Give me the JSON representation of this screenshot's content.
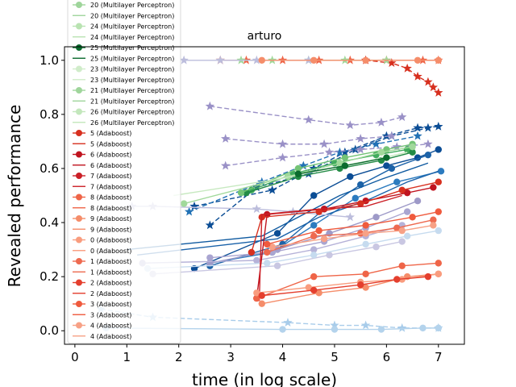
{
  "chart_data": {
    "type": "line",
    "title": "arturo",
    "xlabel": "time (in log scale)",
    "ylabel": "Revealed performance",
    "xlim": [
      -0.2,
      7.5
    ],
    "ylim": [
      -0.05,
      1.05
    ],
    "xticks": [
      0,
      1,
      2,
      3,
      4,
      5,
      6,
      7
    ],
    "yticks": [
      0.0,
      0.2,
      0.4,
      0.6,
      0.8,
      1.0
    ],
    "xtick_labels": [
      "0",
      "1",
      "2",
      "3",
      "4",
      "5",
      "6",
      "7"
    ],
    "ytick_labels": [
      "0.0",
      "0.2",
      "0.4",
      "0.6",
      "0.8",
      "1.0"
    ],
    "grid": false,
    "legend_placement": "upper-left (clipped at top)",
    "legend": [
      {
        "label": "20 (Multilayer Perceptron)",
        "color": "#9fd59b",
        "marker": "circle",
        "style": "solid"
      },
      {
        "label": "20 (Multilayer Perceptron)",
        "color": "#9fd59b",
        "marker": "none",
        "style": "solid"
      },
      {
        "label": "24 (Multilayer Perceptron)",
        "color": "#b9e3b2",
        "marker": "circle",
        "style": "solid"
      },
      {
        "label": "24 (Multilayer Perceptron)",
        "color": "#b9e3b2",
        "marker": "none",
        "style": "solid"
      },
      {
        "label": "25 (Multilayer Perceptron)",
        "color": "#0b6b2e",
        "marker": "circle",
        "style": "solid"
      },
      {
        "label": "25 (Multilayer Perceptron)",
        "color": "#0b6b2e",
        "marker": "none",
        "style": "solid"
      },
      {
        "label": "23 (Multilayer Perceptron)",
        "color": "#d0ecca",
        "marker": "circle",
        "style": "solid"
      },
      {
        "label": "23 (Multilayer Perceptron)",
        "color": "#d0ecca",
        "marker": "none",
        "style": "solid"
      },
      {
        "label": "21 (Multilayer Perceptron)",
        "color": "#9fd59b",
        "marker": "circle",
        "style": "solid"
      },
      {
        "label": "21 (Multilayer Perceptron)",
        "color": "#9fd59b",
        "marker": "none",
        "style": "solid"
      },
      {
        "label": "26 (Multilayer Perceptron)",
        "color": "#c3e7bc",
        "marker": "circle",
        "style": "solid"
      },
      {
        "label": "26 (Multilayer Perceptron)",
        "color": "#c3e7bc",
        "marker": "none",
        "style": "solid"
      },
      {
        "label": "5 (Adaboost)",
        "color": "#d7301f",
        "marker": "circle",
        "style": "solid"
      },
      {
        "label": "5 (Adaboost)",
        "color": "#d7301f",
        "marker": "none",
        "style": "solid"
      },
      {
        "label": "6 (Adaboost)",
        "color": "#c0141f",
        "marker": "circle",
        "style": "solid"
      },
      {
        "label": "6 (Adaboost)",
        "color": "#c0141f",
        "marker": "none",
        "style": "solid"
      },
      {
        "label": "7 (Adaboost)",
        "color": "#cb2027",
        "marker": "circle",
        "style": "solid"
      },
      {
        "label": "7 (Adaboost)",
        "color": "#cb2027",
        "marker": "none",
        "style": "solid"
      },
      {
        "label": "8 (Adaboost)",
        "color": "#ef6548",
        "marker": "circle",
        "style": "solid"
      },
      {
        "label": "8 (Adaboost)",
        "color": "#ef6548",
        "marker": "none",
        "style": "solid"
      },
      {
        "label": "9 (Adaboost)",
        "color": "#f58d6a",
        "marker": "circle",
        "style": "solid"
      },
      {
        "label": "9 (Adaboost)",
        "color": "#f58d6a",
        "marker": "none",
        "style": "solid"
      },
      {
        "label": "0 (Adaboost)",
        "color": "#f99c7e",
        "marker": "circle",
        "style": "solid"
      },
      {
        "label": "0 (Adaboost)",
        "color": "#f99c7e",
        "marker": "none",
        "style": "solid"
      },
      {
        "label": "1 (Adaboost)",
        "color": "#ee6a50",
        "marker": "circle",
        "style": "solid"
      },
      {
        "label": "1 (Adaboost)",
        "color": "#ee6a50",
        "marker": "none",
        "style": "solid"
      },
      {
        "label": "2 (Adaboost)",
        "color": "#e43f2e",
        "marker": "circle",
        "style": "solid"
      },
      {
        "label": "2 (Adaboost)",
        "color": "#e43f2e",
        "marker": "none",
        "style": "solid"
      },
      {
        "label": "3 (Adaboost)",
        "color": "#ef5a3d",
        "marker": "circle",
        "style": "solid"
      },
      {
        "label": "3 (Adaboost)",
        "color": "#ef5a3d",
        "marker": "none",
        "style": "solid"
      },
      {
        "label": "4 (Adaboost)",
        "color": "#f7a186",
        "marker": "circle",
        "style": "solid"
      },
      {
        "label": "4 (Adaboost)",
        "color": "#f7a186",
        "marker": "none",
        "style": "solid"
      }
    ],
    "series": [
      {
        "color": "#0b4d95",
        "marker": "circle",
        "style": "solid",
        "x": [
          2.3,
          3.9,
          4.6,
          5.3,
          6.0,
          6.6,
          7.0
        ],
        "y": [
          0.23,
          0.36,
          0.5,
          0.57,
          0.61,
          0.64,
          0.67
        ]
      },
      {
        "color": "#1d63a8",
        "marker": "circle",
        "style": "solid",
        "x": [
          2.6,
          4.0,
          4.8,
          5.5,
          6.1,
          6.8
        ],
        "y": [
          0.24,
          0.32,
          0.45,
          0.54,
          0.6,
          0.65
        ]
      },
      {
        "color": "#2c7bbf",
        "marker": "circle",
        "style": "solid",
        "x": [
          2.6,
          3.8,
          4.6,
          5.4,
          6.2,
          7.05
        ],
        "y": [
          0.25,
          0.29,
          0.39,
          0.49,
          0.55,
          0.59
        ]
      },
      {
        "color": "#0b4d95",
        "marker": "star",
        "style": "dashed",
        "x": [
          2.3,
          3.8,
          4.6,
          5.2,
          6.0,
          6.6,
          7.0
        ],
        "y": [
          0.46,
          0.52,
          0.6,
          0.66,
          0.72,
          0.75,
          0.755
        ]
      },
      {
        "color": "#0b4d95",
        "marker": "star",
        "style": "dashed",
        "x": [
          2.6,
          3.5,
          4.5,
          5.4,
          6.1,
          6.8
        ],
        "y": [
          0.39,
          0.53,
          0.58,
          0.67,
          0.72,
          0.75
        ]
      },
      {
        "color": "#2171b5",
        "marker": "star",
        "style": "dashed",
        "x": [
          2.2,
          3.6,
          4.4,
          5.1,
          5.8,
          6.6
        ],
        "y": [
          0.44,
          0.55,
          0.61,
          0.66,
          0.69,
          0.72
        ]
      },
      {
        "color": "#0f5aa0",
        "marker": "none",
        "style": "solid",
        "x": [
          1.0,
          3.6,
          4.4,
          5.1,
          5.9,
          6.8
        ],
        "y": [
          0.3,
          0.35,
          0.43,
          0.5,
          0.56,
          0.62
        ]
      },
      {
        "color": "#1a62a9",
        "marker": "none",
        "style": "solid",
        "x": [
          1.2,
          3.9,
          4.7,
          5.6,
          6.4,
          7.0
        ],
        "y": [
          0.28,
          0.34,
          0.42,
          0.48,
          0.55,
          0.59
        ]
      },
      {
        "color": "#9a91c7",
        "marker": "star",
        "style": "dashed",
        "x": [
          2.6,
          4.5,
          5.3,
          5.9,
          6.3
        ],
        "y": [
          0.83,
          0.78,
          0.76,
          0.77,
          0.79
        ]
      },
      {
        "color": "#9a91c7",
        "marker": "star",
        "style": "dashed",
        "x": [
          2.9,
          4.0,
          4.8,
          5.5,
          6.1
        ],
        "y": [
          0.71,
          0.69,
          0.69,
          0.71,
          0.72
        ]
      },
      {
        "color": "#9a91c7",
        "marker": "star",
        "style": "dashed",
        "x": [
          2.9,
          4.0,
          4.9,
          5.5,
          6.2,
          6.8
        ],
        "y": [
          0.61,
          0.64,
          0.66,
          0.67,
          0.68,
          0.69
        ]
      },
      {
        "color": "#9e9ac8",
        "marker": "circle",
        "style": "solid",
        "x": [
          2.6,
          3.9,
          4.9,
          5.8,
          6.6
        ],
        "y": [
          0.25,
          0.3,
          0.36,
          0.42,
          0.48
        ]
      },
      {
        "color": "#a9a5d1",
        "marker": "circle",
        "style": "solid",
        "x": [
          2.6,
          3.8,
          4.8,
          5.6,
          6.4
        ],
        "y": [
          0.27,
          0.29,
          0.33,
          0.38,
          0.44
        ]
      },
      {
        "color": "#b6b2d8",
        "marker": "circle",
        "style": "solid",
        "x": [
          1.3,
          3.5,
          4.6,
          5.6,
          6.3
        ],
        "y": [
          0.25,
          0.26,
          0.3,
          0.35,
          0.39
        ]
      },
      {
        "color": "#c9c7e2",
        "marker": "circle",
        "style": "solid",
        "x": [
          1.5,
          3.9,
          4.9,
          5.8,
          6.3
        ],
        "y": [
          0.21,
          0.24,
          0.28,
          0.31,
          0.33
        ]
      },
      {
        "color": "#c6dbef",
        "marker": "circle",
        "style": "solid",
        "x": [
          1.4,
          3.7,
          4.6,
          5.6,
          6.4,
          7.0
        ],
        "y": [
          0.23,
          0.25,
          0.28,
          0.32,
          0.35,
          0.37
        ]
      },
      {
        "color": "#a8ccea",
        "marker": "star",
        "style": "dashed",
        "x": [
          0.5,
          1.5,
          4.1,
          5.0,
          5.6,
          6.3,
          7.0
        ],
        "y": [
          0.08,
          0.05,
          0.03,
          0.02,
          0.02,
          0.01,
          0.01
        ]
      },
      {
        "color": "#b4d3ec",
        "marker": "circle",
        "style": "solid",
        "x": [
          0.6,
          4.0,
          5.0,
          5.9,
          6.7,
          7.0
        ],
        "y": [
          0.01,
          0.005,
          0.005,
          0.005,
          0.01,
          0.01
        ]
      },
      {
        "color": "#bcbddc",
        "marker": "star",
        "style": "solid",
        "x": [
          1.1,
          1.5,
          3.5,
          4.2,
          5.3
        ],
        "y": [
          0.46,
          0.46,
          0.45,
          0.44,
          0.42
        ]
      },
      {
        "color": "#41ab5d",
        "marker": "circle",
        "style": "solid",
        "x": [
          3.4,
          4.2,
          5.0,
          5.8,
          6.4
        ],
        "y": [
          0.52,
          0.58,
          0.62,
          0.65,
          0.67
        ]
      },
      {
        "color": "#238b45",
        "marker": "circle",
        "style": "solid",
        "x": [
          3.3,
          4.3,
          5.1,
          5.9,
          6.5
        ],
        "y": [
          0.51,
          0.57,
          0.6,
          0.63,
          0.66
        ]
      },
      {
        "color": "#74c476",
        "marker": "circle",
        "style": "solid",
        "x": [
          3.2,
          4.3,
          5.2,
          6.0,
          6.5
        ],
        "y": [
          0.51,
          0.6,
          0.64,
          0.67,
          0.69
        ]
      },
      {
        "color": "#a1d99b",
        "marker": "circle",
        "style": "solid",
        "x": [
          2.1,
          4.1,
          5.1,
          5.9,
          6.5
        ],
        "y": [
          0.47,
          0.57,
          0.62,
          0.66,
          0.68
        ]
      },
      {
        "color": "#c7e9c0",
        "marker": "none",
        "style": "solid",
        "x": [
          1.9,
          3.9,
          4.9,
          5.7,
          6.4
        ],
        "y": [
          0.5,
          0.56,
          0.6,
          0.63,
          0.66
        ]
      },
      {
        "color": "#0b6b2e",
        "marker": "circle",
        "style": "solid",
        "x": [
          4.3,
          5.2,
          6.0
        ],
        "y": [
          0.58,
          0.61,
          0.64
        ]
      },
      {
        "color": "#d7301f",
        "marker": "star",
        "style": "dashed",
        "x": [
          5.6,
          6.1,
          6.4,
          6.6,
          6.8,
          6.9,
          7.0
        ],
        "y": [
          1.0,
          0.99,
          0.97,
          0.94,
          0.92,
          0.9,
          0.88
        ]
      },
      {
        "color": "#ef6548",
        "marker": "star",
        "style": "solid",
        "x": [
          2.8,
          3.3,
          4.0,
          4.7,
          5.3,
          6.0,
          6.7,
          7.0
        ],
        "y": [
          1.0,
          1.0,
          1.0,
          1.0,
          1.0,
          1.0,
          1.0,
          1.0
        ]
      },
      {
        "color": "#a1d99b",
        "marker": "star",
        "style": "solid",
        "x": [
          3.2,
          3.8,
          4.5,
          5.2,
          6.0
        ],
        "y": [
          1.0,
          1.0,
          1.0,
          1.0,
          1.0
        ]
      },
      {
        "color": "#bcbddc",
        "marker": "star",
        "style": "solid",
        "x": [
          2.1,
          2.8,
          3.5,
          4.5
        ],
        "y": [
          1.0,
          1.0,
          1.0,
          1.0
        ]
      },
      {
        "color": "#f58d6a",
        "marker": "circle",
        "style": "solid",
        "x": [
          3.6,
          4.6,
          5.6,
          6.6,
          7.0
        ],
        "y": [
          1.0,
          1.0,
          1.0,
          1.0,
          1.0
        ]
      },
      {
        "color": "#c0141f",
        "marker": "circle",
        "style": "solid",
        "x": [
          3.5,
          3.7,
          4.8,
          5.6,
          6.4,
          6.9
        ],
        "y": [
          0.12,
          0.43,
          0.45,
          0.48,
          0.51,
          0.53
        ]
      },
      {
        "color": "#d7301f",
        "marker": "circle",
        "style": "solid",
        "x": [
          3.4,
          3.6,
          4.7,
          5.5,
          6.3,
          7.0
        ],
        "y": [
          0.29,
          0.42,
          0.44,
          0.47,
          0.52,
          0.55
        ]
      },
      {
        "color": "#cb2027",
        "marker": "none",
        "style": "solid",
        "x": [
          3.55,
          3.6,
          4.7,
          5.6,
          6.3
        ],
        "y": [
          0.11,
          0.43,
          0.45,
          0.46,
          0.5
        ]
      },
      {
        "color": "#ef6548",
        "marker": "circle",
        "style": "solid",
        "x": [
          3.5,
          4.6,
          5.6,
          6.3,
          7.0
        ],
        "y": [
          0.12,
          0.2,
          0.21,
          0.24,
          0.25
        ]
      },
      {
        "color": "#f58d6a",
        "marker": "circle",
        "style": "solid",
        "x": [
          3.6,
          4.7,
          5.6,
          6.4,
          7.0
        ],
        "y": [
          0.1,
          0.14,
          0.16,
          0.2,
          0.21
        ]
      },
      {
        "color": "#f99c7e",
        "marker": "circle",
        "style": "solid",
        "x": [
          3.5,
          4.5,
          5.5,
          6.3,
          7.0
        ],
        "y": [
          0.14,
          0.16,
          0.18,
          0.19,
          0.21
        ]
      },
      {
        "color": "#ee6a50",
        "marker": "circle",
        "style": "solid",
        "x": [
          3.7,
          4.6,
          5.5,
          6.2,
          6.9
        ],
        "y": [
          0.29,
          0.35,
          0.36,
          0.38,
          0.41
        ]
      },
      {
        "color": "#f7a186",
        "marker": "circle",
        "style": "solid",
        "x": [
          3.8,
          4.8,
          5.6,
          6.3,
          6.9
        ],
        "y": [
          0.31,
          0.34,
          0.36,
          0.37,
          0.39
        ]
      },
      {
        "color": "#e43f2e",
        "marker": "circle",
        "style": "solid",
        "x": [
          3.6,
          4.6,
          5.5,
          6.2,
          6.8
        ],
        "y": [
          0.13,
          0.15,
          0.17,
          0.19,
          0.2
        ]
      },
      {
        "color": "#ef5a3d",
        "marker": "circle",
        "style": "solid",
        "x": [
          3.7,
          4.7,
          5.6,
          6.5,
          7.0
        ],
        "y": [
          0.32,
          0.37,
          0.39,
          0.42,
          0.44
        ]
      }
    ]
  }
}
